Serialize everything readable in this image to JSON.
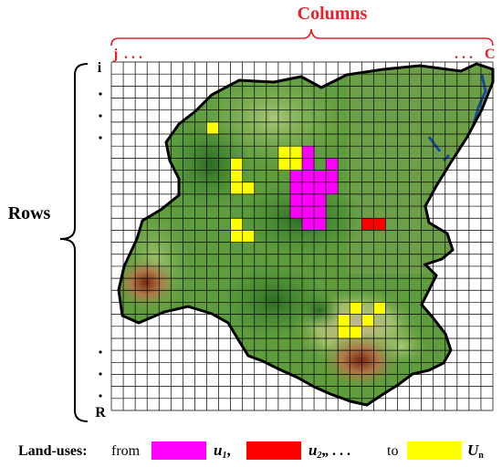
{
  "figure": {
    "columns_title": "Columns",
    "col_start": "j",
    "col_start_dots": ". . .",
    "col_end_dots": ". . .",
    "col_end": "C",
    "rows_title": "Rows",
    "row_start": "i",
    "row_end": "R",
    "grid": {
      "columns": 32,
      "rows": 29
    }
  },
  "legend": {
    "prefix": "Land-uses:",
    "from_word": "from",
    "items": [
      {
        "symbol": "u",
        "sub": "1",
        "trail": ",",
        "color": "#ff00ff"
      },
      {
        "symbol": "u",
        "sub": "2",
        "trail": ",",
        "color": "#ff0000"
      },
      {
        "symbol": "U",
        "sub": "n",
        "trail": "",
        "color": "#ffff00"
      }
    ],
    "ellipsis": ", . . .",
    "to_word": "to"
  },
  "colors": {
    "label_red": "#e8202a",
    "terrain_green": "#5a9a3c",
    "terrain_dark": "#3a7a2a",
    "mountain_brown": "#8a5a2a",
    "water_blue": "#1a4aa0",
    "grid_line": "#000000"
  }
}
